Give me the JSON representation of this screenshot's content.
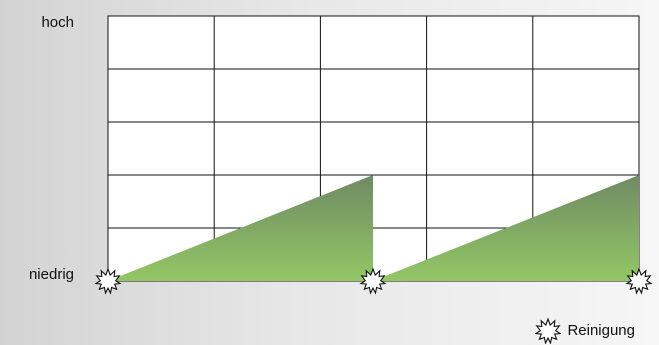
{
  "diagram": {
    "labels": {
      "high": "hoch",
      "low": "niedrig"
    },
    "legend": {
      "label": "Reinigung",
      "icon": "starburst-icon"
    },
    "colors": {
      "grid_line": "#111111",
      "grid_fill": "#ffffff",
      "fill_top": "#6f8a63",
      "fill_bottom": "#93c765",
      "marker_fill": "#ffffff",
      "marker_stroke": "#111111"
    }
  }
}
